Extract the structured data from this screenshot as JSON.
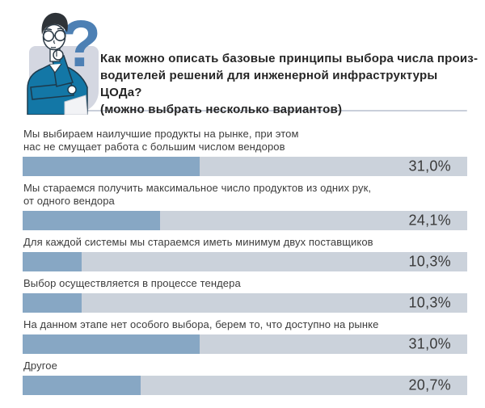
{
  "question": {
    "text": "Как можно описать базовые принципы выбора числа произ-\nводителей решений для инженерной инфраструктуры ЦОДа?\n(можно выбрать несколько вариантов)"
  },
  "illustration": {
    "description": "thinking man with hand on chin and large question mark",
    "question_mark_glyph": "?",
    "question_mark_color": "#4d80b4",
    "shirt_color": "#1377a6",
    "panel_color": "#d4d7e1"
  },
  "chart_data": {
    "type": "bar",
    "orientation": "horizontal",
    "title": "Как можно описать базовые принципы выбора числа производителей решений для инженерной инфраструктуры ЦОДа? (можно выбрать несколько вариантов)",
    "categories": [
      "Мы выбираем наилучшие продукты на рынке, при этом\nнас не смущает работа с большим числом вендоров",
      "Мы стараемся получить максимальное число продуктов из одних рук,\nот одного вендора",
      "Для каждой системы мы стараемся иметь минимум двух поставщиков",
      "Выбор осуществляется в процессе тендера",
      "На данном этапе нет особого выбора, берем то, что доступно на рынке",
      "Другое"
    ],
    "values": [
      31.0,
      24.1,
      10.3,
      10.3,
      31.0,
      20.7
    ],
    "value_labels": [
      "31,0%",
      "24,1%",
      "10,3%",
      "10,3%",
      "31,0%",
      "20,7%"
    ],
    "xlim": [
      0,
      78
    ],
    "grid": false,
    "legend": false,
    "bar_color": "#87a7c4",
    "track_color": "#cbd2db",
    "label_color": "#3c3c3c"
  }
}
